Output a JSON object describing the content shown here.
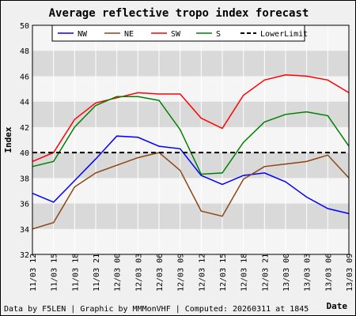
{
  "chart_data": {
    "type": "line",
    "title": "Average reflective tropo index forecast",
    "ylabel": "Index",
    "xlabel": "Date",
    "ylim": [
      32,
      50
    ],
    "yticks": [
      32,
      34,
      36,
      38,
      40,
      42,
      44,
      46,
      48,
      50
    ],
    "grid": true,
    "legend_position": "top",
    "categories": [
      "11/03 12",
      "11/03 15",
      "11/03 18",
      "11/03 21",
      "12/03 00",
      "12/03 03",
      "12/03 06",
      "12/03 09",
      "12/03 12",
      "12/03 15",
      "12/03 18",
      "12/03 21",
      "13/03 00",
      "13/03 03",
      "13/03 06",
      "13/03 09"
    ],
    "series": [
      {
        "name": "NW",
        "color": "#0000ff",
        "values": [
          36.8,
          36.1,
          37.8,
          39.5,
          41.3,
          41.2,
          40.5,
          40.3,
          38.2,
          37.5,
          38.2,
          38.4,
          37.7,
          36.5,
          35.6,
          35.2
        ]
      },
      {
        "name": "NE",
        "color": "#8b4513",
        "values": [
          34.0,
          34.5,
          37.3,
          38.4,
          39.0,
          39.6,
          40.0,
          38.6,
          35.4,
          35.0,
          37.9,
          38.9,
          39.1,
          39.3,
          39.8,
          38.0
        ]
      },
      {
        "name": "SW",
        "color": "#ff0000",
        "values": [
          39.3,
          40.0,
          42.6,
          43.9,
          44.3,
          44.7,
          44.6,
          44.6,
          42.7,
          41.9,
          44.5,
          45.7,
          46.1,
          46.0,
          45.7,
          44.7
        ]
      },
      {
        "name": "S",
        "color": "#008000",
        "values": [
          38.9,
          39.3,
          42.0,
          43.7,
          44.4,
          44.4,
          44.1,
          41.8,
          38.3,
          38.4,
          40.8,
          42.4,
          43.0,
          43.2,
          42.9,
          40.5
        ]
      },
      {
        "name": "LowerLimit",
        "color": "#000000",
        "dashed": true,
        "values": [
          40,
          40,
          40,
          40,
          40,
          40,
          40,
          40,
          40,
          40,
          40,
          40,
          40,
          40,
          40,
          40
        ]
      }
    ]
  },
  "footer": {
    "credits": "Data by F5LEN | Graphic by MMMonVHF | Computed: 20260311 at 1845"
  }
}
